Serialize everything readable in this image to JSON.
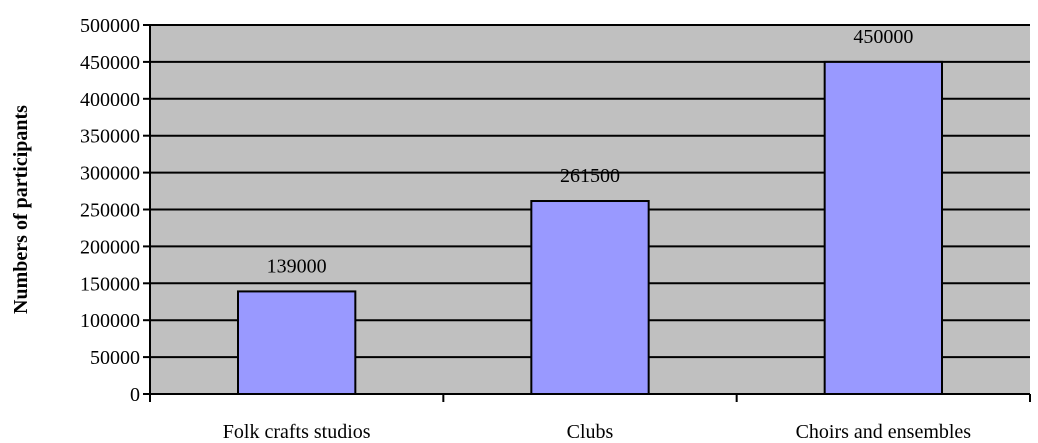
{
  "chart_data": {
    "type": "bar",
    "title": "",
    "xlabel": "",
    "ylabel": "Numbers of participants",
    "categories": [
      "Folk crafts studios",
      "Clubs",
      "Choirs and ensembles"
    ],
    "values": [
      139000,
      261500,
      450000
    ],
    "data_labels": [
      "139000",
      "261500",
      "450000"
    ],
    "ylim": [
      0,
      500000
    ],
    "yticks": [
      0,
      50000,
      100000,
      150000,
      200000,
      250000,
      300000,
      350000,
      400000,
      450000,
      500000
    ],
    "ytick_labels": [
      "0",
      "50000",
      "100000",
      "150000",
      "200000",
      "250000",
      "300000",
      "350000",
      "400000",
      "450000",
      "500000"
    ],
    "grid": true,
    "legend": "none",
    "colors": {
      "plot_background": "#c0c0c0",
      "bar_fill": "#9999ff",
      "bar_stroke": "#000000",
      "gridline": "#000000"
    }
  }
}
